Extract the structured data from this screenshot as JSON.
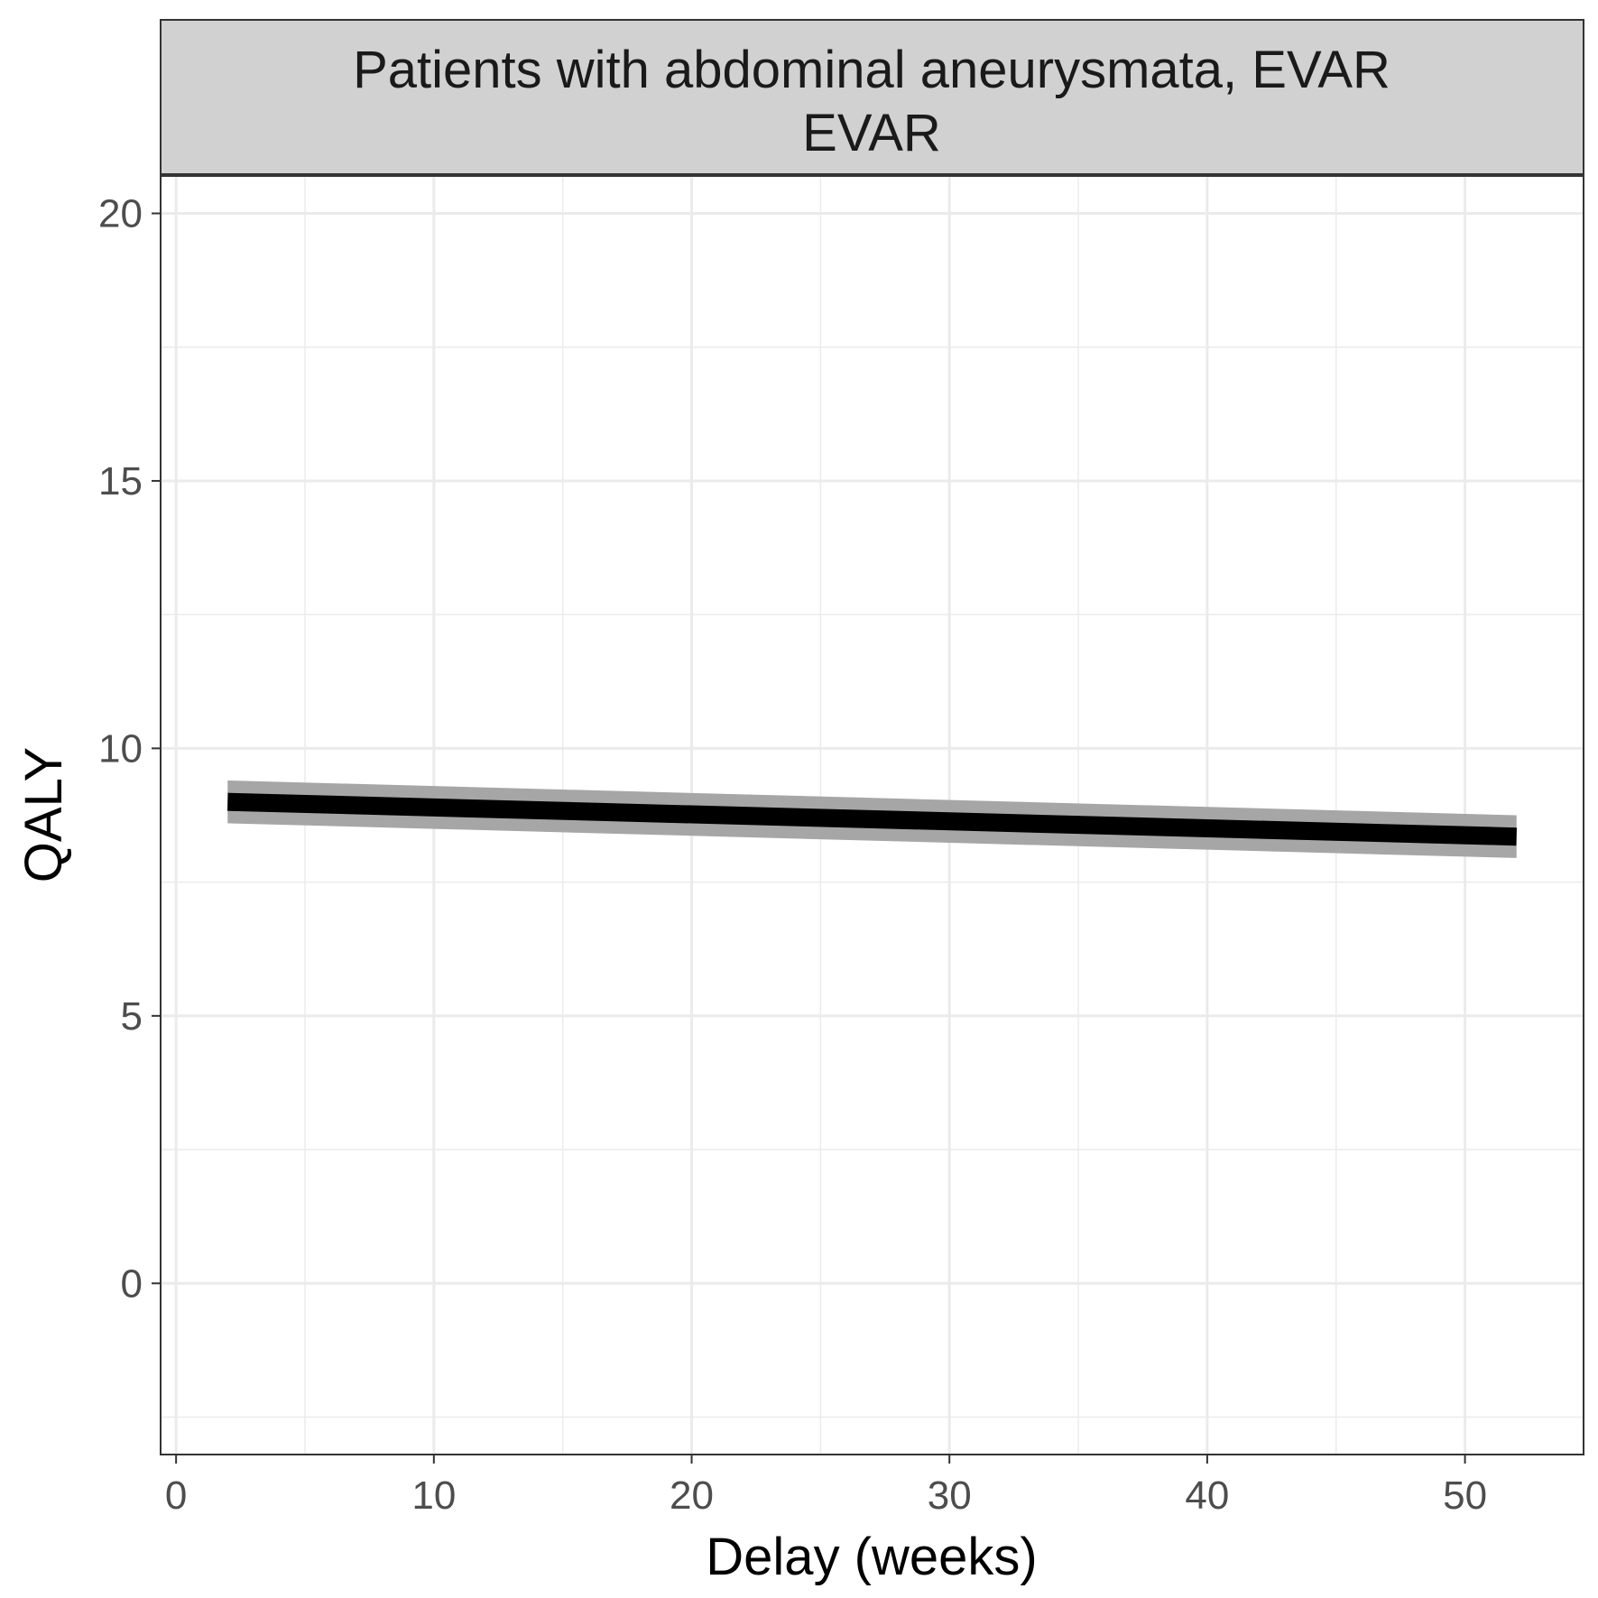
{
  "chart_data": {
    "type": "line",
    "facet_strip": [
      "Patients with abdominal aneurysmata, EVAR",
      "EVAR"
    ],
    "xlabel": "Delay (weeks)",
    "ylabel": "QALY",
    "xlim": [
      -0.6,
      54.6
    ],
    "ylim": [
      -3.2,
      20.7
    ],
    "x_ticks": [
      0,
      10,
      20,
      30,
      40,
      50
    ],
    "y_ticks": [
      0,
      5,
      10,
      15,
      20
    ],
    "x_minor": [
      5,
      15,
      25,
      35,
      45
    ],
    "y_minor": [
      -2.5,
      2.5,
      7.5,
      12.5,
      17.5
    ],
    "grid": true,
    "series": [
      {
        "x": [
          2,
          52
        ],
        "y": [
          9.0,
          8.35
        ],
        "ci_lower": [
          8.6,
          7.95
        ],
        "ci_upper": [
          9.4,
          8.75
        ]
      }
    ],
    "colors": {
      "line": "#000000",
      "ribbon": "#a6a6a6",
      "strip_fill": "#d1d1d1",
      "grid": "#ebebeb"
    }
  }
}
